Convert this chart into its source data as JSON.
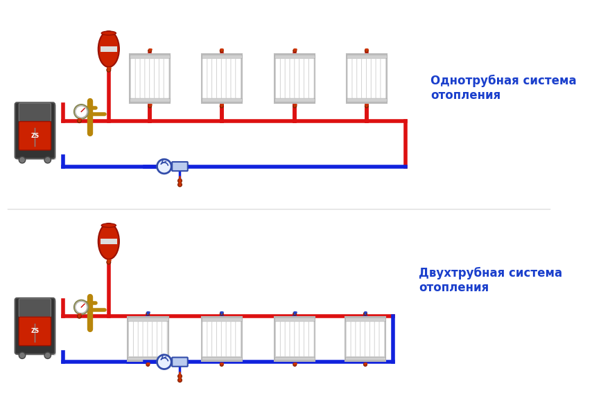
{
  "background_color": "#ffffff",
  "title1": "Однотрубная система\nотопления",
  "title2": "Двухтрубная система\nотопления",
  "title_color": "#1a3fcc",
  "pipe_red": "#dd1111",
  "pipe_blue": "#1122dd",
  "pipe_lw": 4.0,
  "boiler_dark": "#2d2d2d",
  "boiler_gray": "#4a4a4a",
  "boiler_red": "#cc2200",
  "radiator_color": "#f0f0f0",
  "expansion_tank_color": "#cc2200",
  "valve_red": "#cc3300",
  "valve_blue": "#2244cc",
  "gauge_color": "#c8a020",
  "pump_color": "#3366cc",
  "gold": "#b8860b"
}
